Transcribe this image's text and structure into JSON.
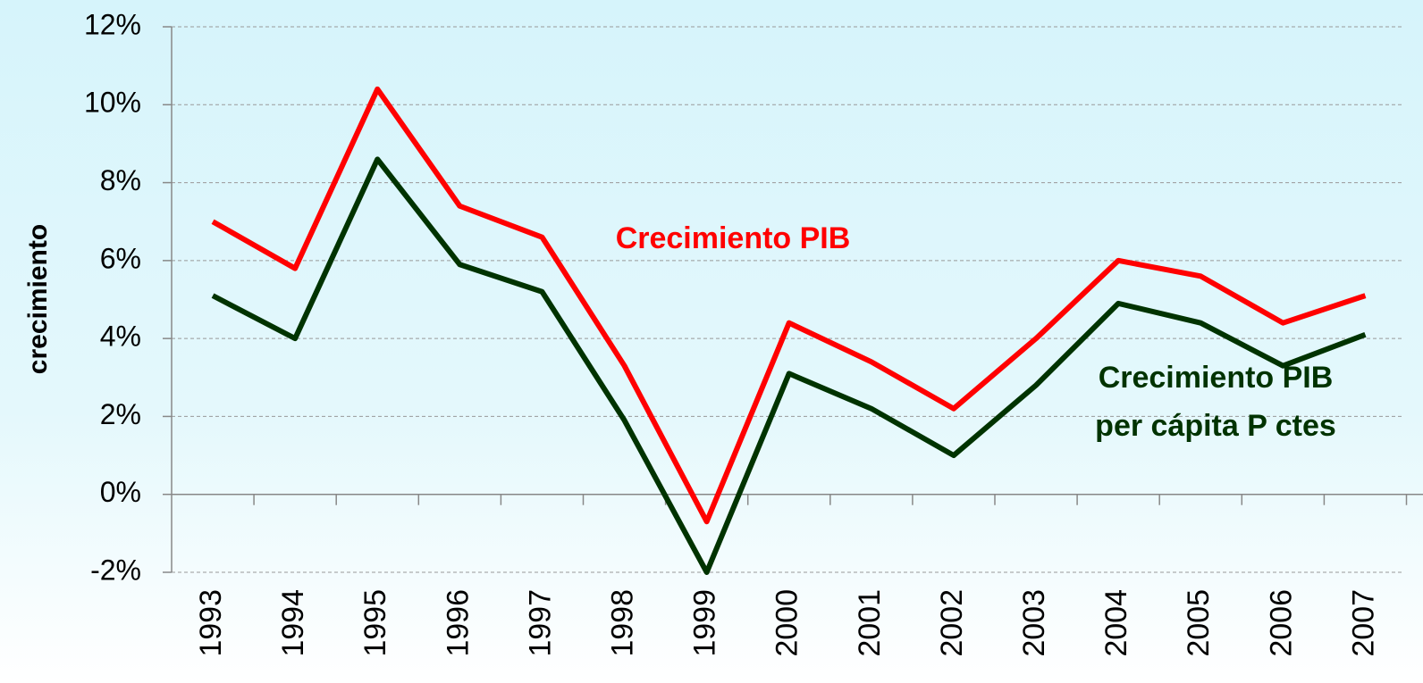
{
  "chart_data": {
    "type": "line",
    "y_label": "crecimiento",
    "categories": [
      "1993",
      "1994",
      "1995",
      "1996",
      "1997",
      "1998",
      "1999",
      "2000",
      "2001",
      "2002",
      "2003",
      "2004",
      "2005",
      "2006",
      "2007"
    ],
    "series": [
      {
        "name": "Crecimiento PIB",
        "color": "#ff0000",
        "values": [
          7.0,
          5.8,
          10.4,
          7.4,
          6.6,
          3.3,
          -0.7,
          4.4,
          3.4,
          2.2,
          4.0,
          6.0,
          5.6,
          4.4,
          5.1
        ]
      },
      {
        "name": "Crecimiento PIB per cápita P ctes",
        "color": "#003300",
        "values": [
          5.1,
          4.0,
          8.6,
          5.9,
          5.2,
          1.9,
          -2.0,
          3.1,
          2.2,
          1.0,
          2.8,
          4.9,
          4.4,
          3.3,
          4.1
        ]
      }
    ],
    "ylim": [
      -2,
      12
    ],
    "yticks": [
      {
        "value": -2,
        "label": "-2%"
      },
      {
        "value": 0,
        "label": "0%"
      },
      {
        "value": 2,
        "label": "2%"
      },
      {
        "value": 4,
        "label": "4%"
      },
      {
        "value": 6,
        "label": "6%"
      },
      {
        "value": 8,
        "label": "8%"
      },
      {
        "value": 10,
        "label": "10%"
      },
      {
        "value": 12,
        "label": "12%"
      }
    ],
    "grid": true
  }
}
